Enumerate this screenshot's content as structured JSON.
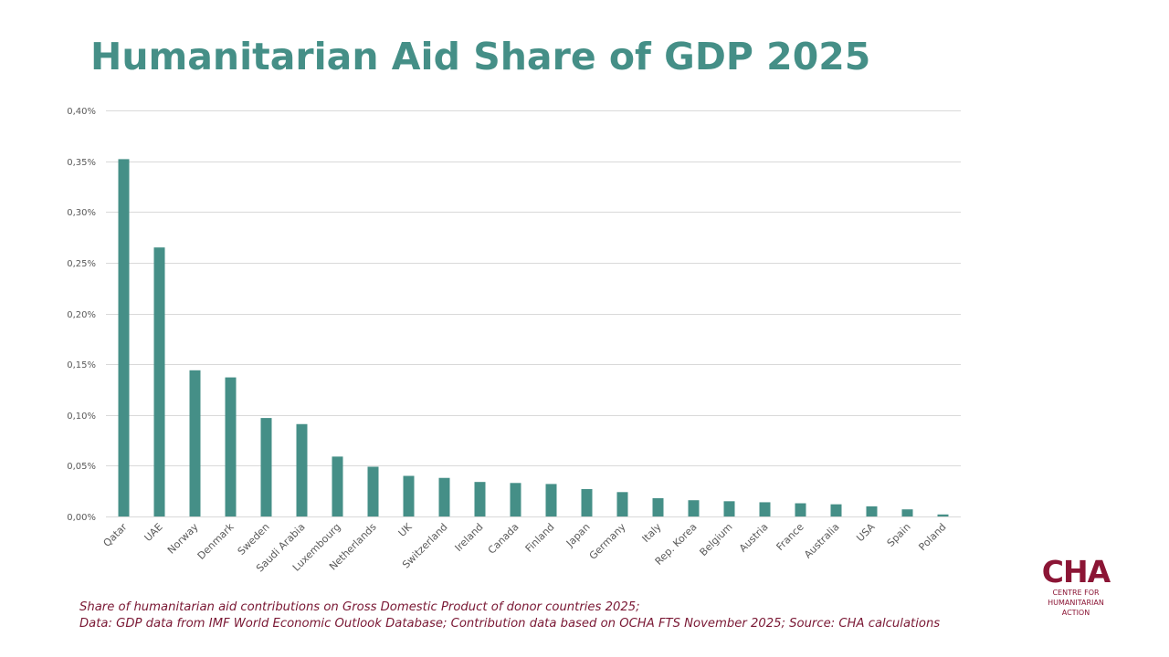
{
  "title": "Humanitarian Aid Share of GDP 2025",
  "footnote": {
    "line1": "Share of humanitarian aid contributions on Gross Domestic Product of donor countries 2025;",
    "line2": "Data: GDP data from IMF World Economic Outlook Database; Contribution data based on OCHA FTS November 2025; Source: CHA calculations"
  },
  "logo": {
    "mark": "CHA",
    "line1": "CENTRE FOR",
    "line2": "HUMANITARIAN",
    "line3": "ACTION"
  },
  "colors": {
    "title": "#458f87",
    "bar": "#458f87",
    "grid": "#d9d9d9",
    "tick_text": "#595959",
    "footnote": "#7a1834",
    "logo": "#8b1535"
  },
  "chart_data": {
    "type": "bar",
    "title": "Humanitarian Aid Share of GDP 2025",
    "xlabel": "",
    "ylabel": "",
    "ylim": [
      0,
      0.4
    ],
    "yticks": [
      0,
      0.05,
      0.1,
      0.15,
      0.2,
      0.25,
      0.3,
      0.35,
      0.4
    ],
    "ytick_labels": [
      "0,00%",
      "0,05%",
      "0,10%",
      "0,15%",
      "0,20%",
      "0,25%",
      "0,30%",
      "0,35%",
      "0,40%"
    ],
    "grid": true,
    "legend": "none",
    "unit": "% of GDP",
    "categories": [
      "Qatar",
      "UAE",
      "Norway",
      "Denmark",
      "Sweden",
      "Saudi Arabia",
      "Luxembourg",
      "Netherlands",
      "UK",
      "Switzerland",
      "Ireland",
      "Canada",
      "Finland",
      "Japan",
      "Germany",
      "Italy",
      "Rep. Korea",
      "Belgium",
      "Austria",
      "France",
      "Australia",
      "USA",
      "Spain",
      "Poland"
    ],
    "values": [
      0.352,
      0.265,
      0.144,
      0.137,
      0.097,
      0.091,
      0.059,
      0.049,
      0.04,
      0.038,
      0.034,
      0.033,
      0.032,
      0.027,
      0.024,
      0.018,
      0.016,
      0.015,
      0.014,
      0.013,
      0.012,
      0.01,
      0.007,
      0.002
    ]
  }
}
